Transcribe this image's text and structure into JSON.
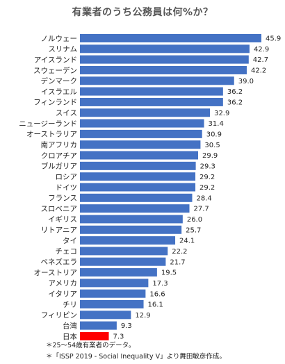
{
  "chart_data": {
    "type": "bar",
    "orientation": "horizontal",
    "title": "有業者のうち公務員は何%か？",
    "categories": [
      "ノルウェー",
      "スリナム",
      "アイスランド",
      "スウェーデン",
      "デンマーク",
      "イスラエル",
      "フィンランド",
      "スイス",
      "ニュージーランド",
      "オーストラリア",
      "南アフリカ",
      "クロアチア",
      "ブルガリア",
      "ロシア",
      "ドイツ",
      "フランス",
      "スロベニア",
      "イギリス",
      "リトアニア",
      "タイ",
      "チェコ",
      "ベネズエラ",
      "オーストリア",
      "アメリカ",
      "イタリア",
      "チリ",
      "フィリピン",
      "台湾",
      "日本"
    ],
    "values": [
      45.9,
      42.9,
      42.7,
      42.2,
      39.0,
      36.2,
      36.2,
      32.9,
      31.4,
      30.9,
      30.5,
      29.9,
      29.3,
      29.2,
      29.2,
      28.4,
      27.7,
      26.0,
      25.7,
      24.1,
      22.2,
      21.7,
      19.5,
      17.3,
      16.6,
      16.1,
      12.9,
      9.3,
      7.3
    ],
    "value_labels": [
      "45.9",
      "42.9",
      "42.7",
      "42.2",
      "39.0",
      "36.2",
      "36.2",
      "32.9",
      "31.4",
      "30.9",
      "30.5",
      "29.9",
      "29.3",
      "29.2",
      "29.2",
      "28.4",
      "27.7",
      "26.0",
      "25.7",
      "24.1",
      "22.2",
      "21.7",
      "19.5",
      "17.3",
      "16.6",
      "16.1",
      "12.9",
      "9.3",
      "7.3"
    ],
    "xlim": [
      0,
      50
    ],
    "grid": false,
    "legend": "none",
    "colors": {
      "default": "#4472c4",
      "highlight": "#ff0000"
    },
    "highlight": "日本",
    "notes": [
      "＊25～54歳有業者のデータ。",
      "＊「ISSP 2019 - Social Inequality V」より舞田敏彦作成。"
    ]
  }
}
